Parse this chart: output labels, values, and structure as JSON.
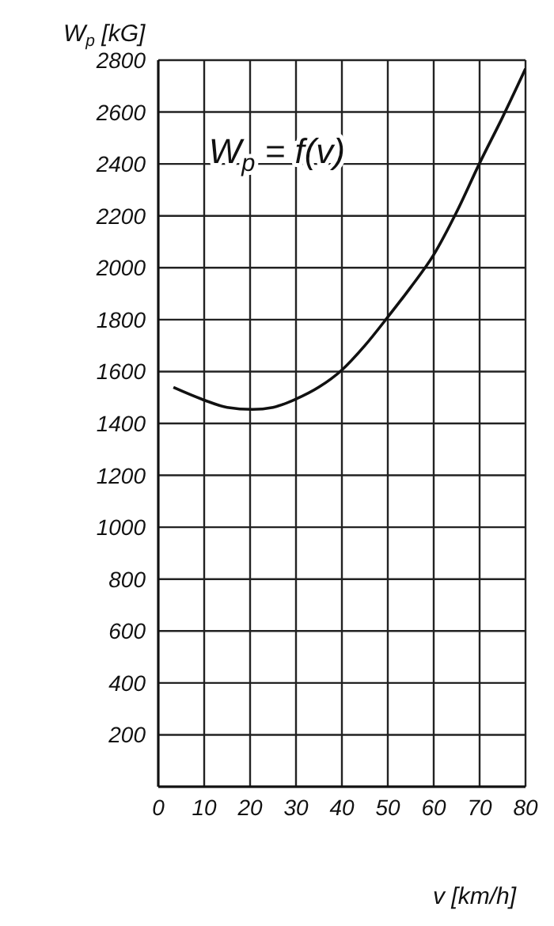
{
  "chart_data": {
    "type": "line",
    "xlabel": "v [km/h]",
    "ylabel": "W$_{p}$ [kG]",
    "annotations": [
      {
        "text": "W$_{p}$ = f(v)"
      }
    ],
    "x": [
      3.3,
      10,
      15,
      20.5,
      25,
      30,
      35,
      40,
      45,
      50,
      55,
      60,
      65,
      70,
      75,
      80
    ],
    "series": [
      {
        "color": "#111111",
        "values": [
          1539,
          1490,
          1462,
          1454,
          1462,
          1494,
          1540,
          1606,
          1700,
          1810,
          1925,
          2050,
          2215,
          2403,
          2580,
          2767
        ]
      }
    ],
    "xlim": [
      0,
      80
    ],
    "xticks": [
      0,
      10,
      20,
      30,
      40,
      50,
      60,
      70,
      80
    ],
    "ylim": [
      0,
      2800
    ],
    "yticks": [
      200,
      400,
      600,
      800,
      1000,
      1200,
      1400,
      1600,
      1800,
      2000,
      2200,
      2400,
      2600,
      2800
    ],
    "grid": true,
    "marker": "none",
    "line_style": "solid"
  }
}
